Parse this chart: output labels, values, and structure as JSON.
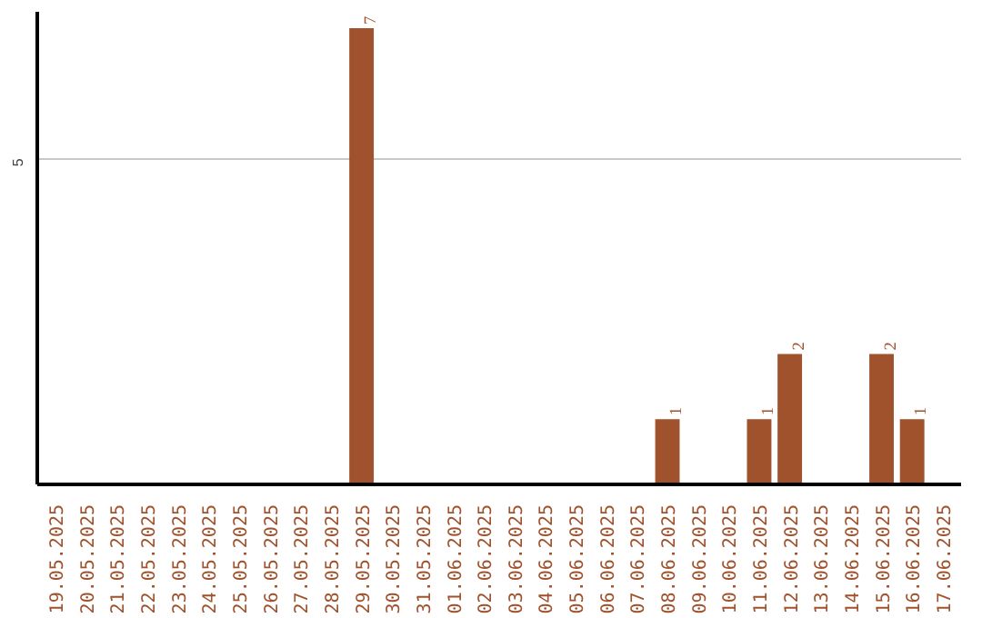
{
  "chart_data": {
    "type": "bar",
    "categories": [
      "19.05.2025",
      "20.05.2025",
      "21.05.2025",
      "22.05.2025",
      "23.05.2025",
      "24.05.2025",
      "25.05.2025",
      "26.05.2025",
      "27.05.2025",
      "28.05.2025",
      "29.05.2025",
      "30.05.2025",
      "31.05.2025",
      "01.06.2025",
      "02.06.2025",
      "03.06.2025",
      "04.06.2025",
      "05.06.2025",
      "06.06.2025",
      "07.06.2025",
      "08.06.2025",
      "09.06.2025",
      "10.06.2025",
      "11.06.2025",
      "12.06.2025",
      "13.06.2025",
      "14.06.2025",
      "15.06.2025",
      "16.06.2025",
      "17.06.2025"
    ],
    "values": [
      0,
      0,
      0,
      0,
      0,
      0,
      0,
      0,
      0,
      0,
      7,
      0,
      0,
      0,
      0,
      0,
      0,
      0,
      0,
      0,
      1,
      0,
      0,
      1,
      2,
      0,
      0,
      2,
      1,
      0
    ],
    "value_labels": [
      null,
      null,
      null,
      null,
      null,
      null,
      null,
      null,
      null,
      null,
      "7",
      null,
      null,
      null,
      null,
      null,
      null,
      null,
      null,
      null,
      "1",
      null,
      null,
      "1",
      "2",
      null,
      null,
      "2",
      "1",
      null
    ],
    "color": "#a0522d",
    "ylim": [
      0,
      7.25
    ],
    "yticks": [
      5
    ],
    "grid": "y"
  }
}
